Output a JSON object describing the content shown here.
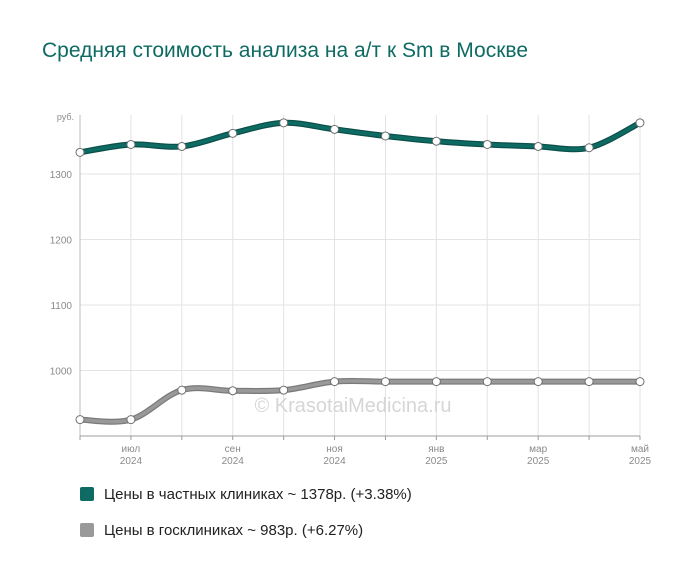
{
  "chart_data": {
    "type": "line",
    "title": "Средняя стоимость анализа на а/т к Sm в Москве",
    "ylabel": "руб.",
    "ylim": [
      900,
      1390
    ],
    "yticks": [
      1000,
      1100,
      1200,
      1300
    ],
    "grid": true,
    "legend_position": "bottom",
    "x_labels": [
      {
        "index": 1,
        "month": "июл",
        "year": "2024"
      },
      {
        "index": 3,
        "month": "сен",
        "year": "2024"
      },
      {
        "index": 5,
        "month": "ноя",
        "year": "2024"
      },
      {
        "index": 7,
        "month": "янв",
        "year": "2025"
      },
      {
        "index": 9,
        "month": "мар",
        "year": "2025"
      },
      {
        "index": 11,
        "month": "май",
        "year": "2025"
      }
    ],
    "x": [
      "2024-06",
      "2024-07",
      "2024-08",
      "2024-09",
      "2024-10",
      "2024-11",
      "2024-12",
      "2025-01",
      "2025-02",
      "2025-03",
      "2025-04",
      "2025-05"
    ],
    "series": [
      {
        "name": "Цены в частных клиниках",
        "legend": "Цены в частных клиниках ~ 1378р. (+3.38%)",
        "color": "#0e6b63",
        "values": [
          1333,
          1345,
          1342,
          1362,
          1378,
          1368,
          1358,
          1350,
          1345,
          1342,
          1340,
          1378
        ]
      },
      {
        "name": "Цены в госклиниках",
        "legend": "Цены в госклиниках ~ 983р. (+6.27%)",
        "color": "#999999",
        "values": [
          925,
          925,
          970,
          969,
          970,
          983,
          983,
          983,
          983,
          983,
          983,
          983
        ]
      }
    ]
  },
  "watermark": "© KrasotaiMedicina.ru"
}
